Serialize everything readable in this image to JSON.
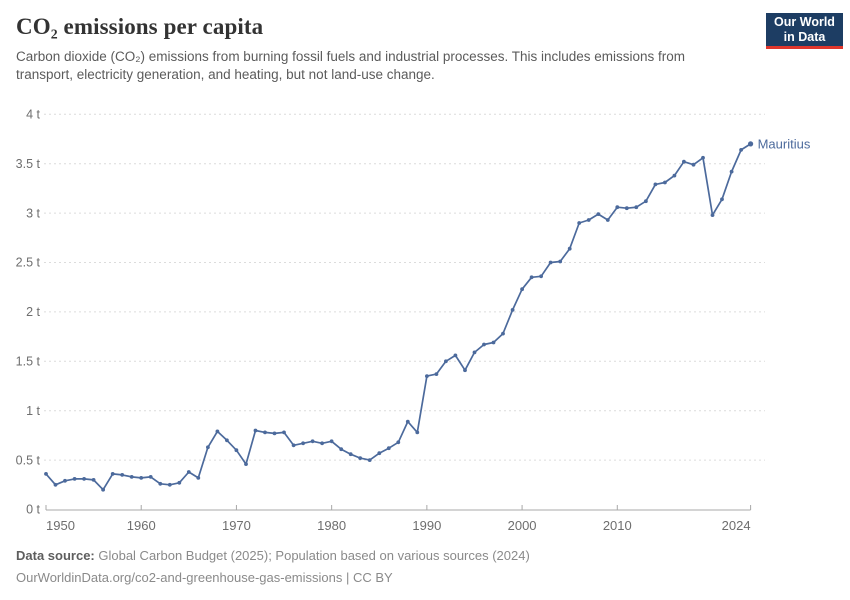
{
  "header": {
    "title": "CO₂ emissions per capita",
    "subtitle": "Carbon dioxide (CO₂) emissions from burning fossil fuels and industrial processes. This includes emissions from transport, electricity generation, and heating, but not land-use change.",
    "logo": {
      "line1": "Our World",
      "line2": "in Data",
      "bg_color": "#1d3d63",
      "accent_color": "#e0362c"
    }
  },
  "chart_data": {
    "type": "line",
    "title": "CO₂ emissions per capita",
    "unit": "t",
    "grid": "horizontal dashed",
    "legend_position": "end-of-line label",
    "xlim": [
      1950,
      2024
    ],
    "ylim": [
      0,
      4
    ],
    "x": [
      1950,
      1951,
      1952,
      1953,
      1954,
      1955,
      1956,
      1957,
      1958,
      1959,
      1960,
      1961,
      1962,
      1963,
      1964,
      1965,
      1966,
      1967,
      1968,
      1969,
      1970,
      1971,
      1972,
      1973,
      1974,
      1975,
      1976,
      1977,
      1978,
      1979,
      1980,
      1981,
      1982,
      1983,
      1984,
      1985,
      1986,
      1987,
      1988,
      1989,
      1990,
      1991,
      1992,
      1993,
      1994,
      1995,
      1996,
      1997,
      1998,
      1999,
      2000,
      2001,
      2002,
      2003,
      2004,
      2005,
      2006,
      2007,
      2008,
      2009,
      2010,
      2011,
      2012,
      2013,
      2014,
      2015,
      2016,
      2017,
      2018,
      2019,
      2020,
      2021,
      2022,
      2023,
      2024
    ],
    "series": [
      {
        "name": "Mauritius",
        "color": "#4c6a9c",
        "values": [
          0.36,
          0.25,
          0.29,
          0.31,
          0.31,
          0.3,
          0.2,
          0.36,
          0.35,
          0.33,
          0.32,
          0.33,
          0.26,
          0.25,
          0.27,
          0.38,
          0.32,
          0.63,
          0.79,
          0.7,
          0.6,
          0.46,
          0.8,
          0.78,
          0.77,
          0.78,
          0.65,
          0.67,
          0.69,
          0.67,
          0.69,
          0.61,
          0.56,
          0.52,
          0.5,
          0.57,
          0.62,
          0.68,
          0.89,
          0.78,
          1.35,
          1.37,
          1.5,
          1.56,
          1.41,
          1.59,
          1.67,
          1.69,
          1.78,
          2.02,
          2.23,
          2.35,
          2.36,
          2.5,
          2.51,
          2.64,
          2.9,
          2.93,
          2.99,
          2.93,
          3.06,
          3.05,
          3.06,
          3.12,
          3.29,
          3.31,
          3.38,
          3.52,
          3.49,
          3.56,
          2.98,
          3.14,
          3.42,
          3.64,
          3.7
        ]
      }
    ],
    "y_ticks": [
      {
        "value": 0,
        "label": "0 t"
      },
      {
        "value": 0.5,
        "label": "0.5 t"
      },
      {
        "value": 1,
        "label": "1 t"
      },
      {
        "value": 1.5,
        "label": "1.5 t"
      },
      {
        "value": 2,
        "label": "2 t"
      },
      {
        "value": 2.5,
        "label": "2.5 t"
      },
      {
        "value": 3,
        "label": "3 t"
      },
      {
        "value": 3.5,
        "label": "3.5 t"
      },
      {
        "value": 4,
        "label": "4 t"
      }
    ],
    "x_ticks": [
      {
        "value": 1950,
        "label": "1950",
        "align": "start"
      },
      {
        "value": 1960,
        "label": "1960",
        "align": "middle"
      },
      {
        "value": 1970,
        "label": "1970",
        "align": "middle"
      },
      {
        "value": 1980,
        "label": "1980",
        "align": "middle"
      },
      {
        "value": 1990,
        "label": "1990",
        "align": "middle"
      },
      {
        "value": 2000,
        "label": "2000",
        "align": "middle"
      },
      {
        "value": 2010,
        "label": "2010",
        "align": "middle"
      },
      {
        "value": 2024,
        "label": "2024",
        "align": "end"
      }
    ],
    "end_label": "Mauritius"
  },
  "footer": {
    "datasource_label": "Data source:",
    "datasource_text": " Global Carbon Budget (2025); Population based on various sources (2024)",
    "link_text": "OurWorldinData.org/co2-and-greenhouse-gas-emissions",
    "license_suffix": " | CC BY"
  }
}
